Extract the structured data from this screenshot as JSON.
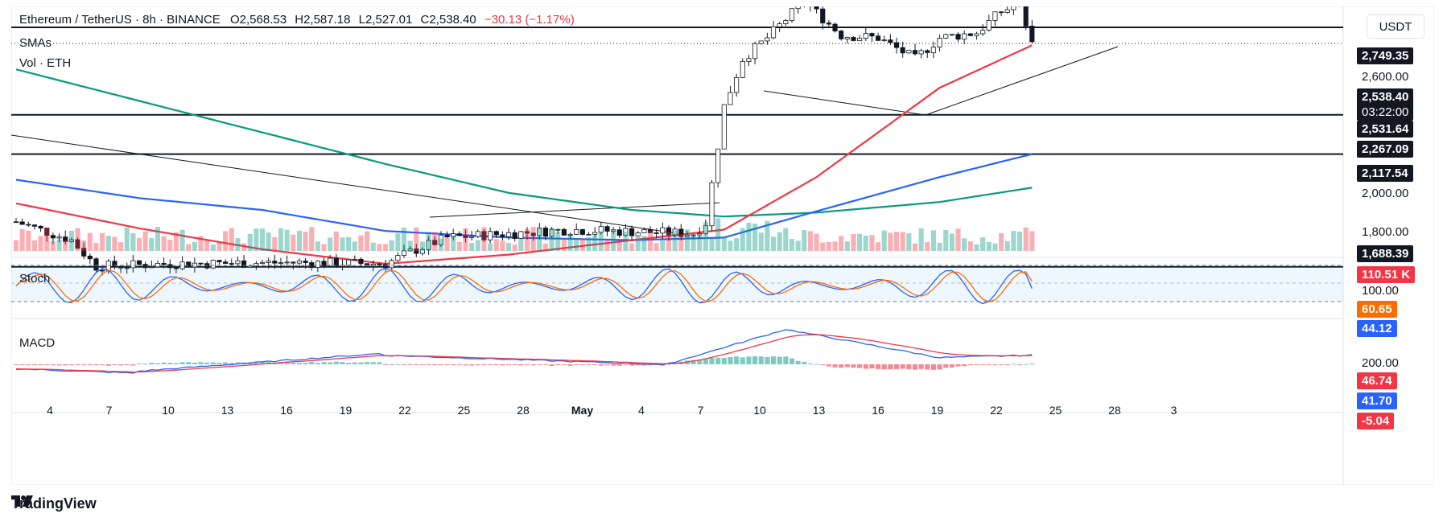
{
  "header": {
    "symbol": "Ethereum / TetherUS · 8h · BINANCE",
    "open": "O2,568.53",
    "high": "H2,587.18",
    "low": "L2,527.01",
    "close": "C2,538.40",
    "change": "−30.13 (−1.17%)",
    "change_color": "#f23645"
  },
  "currency": "USDT",
  "pane_labels": {
    "smas": "SMAs",
    "vol": "Vol · ETH",
    "stoch": "Stoch",
    "macd": "MACD"
  },
  "brand": "TradingView",
  "price_tags": {
    "h_2749": "2,749.35",
    "h_2600": "2,600.00",
    "last": "2,538.40",
    "countdown": "03:22:00",
    "sma_red": "2,531.64",
    "h_2267": "2,267.09",
    "h_2117": "2,117.54",
    "p_2000": "2,000.00",
    "p_1800": "1,800.00",
    "h_1688": "1,688.39",
    "volume": "110.51 K",
    "stoch_100": "100.00",
    "stoch_k": "60.65",
    "stoch_d": "44.12",
    "macd_200": "200.00",
    "macd_hist": "46.74",
    "macd_line": "41.70",
    "macd_signal": "-5.04"
  },
  "colors": {
    "up": "#089981",
    "down": "#f23645",
    "sma_red": "#f23645",
    "sma_blue": "#2962ff",
    "sma_green": "#089981",
    "stoch_k": "#2962ff",
    "stoch_d": "#ff6d00",
    "macd_hist_up": "#26a69a",
    "macd_hist_down": "#f23645"
  },
  "chart_data": {
    "type": "candlestick",
    "pair": "ETH/USDT",
    "timeframe": "8h",
    "x_ticks": [
      "4",
      "7",
      "10",
      "13",
      "16",
      "19",
      "22",
      "25",
      "28",
      "May",
      "4",
      "7",
      "10",
      "13",
      "16",
      "19",
      "22",
      "25",
      "28",
      "3"
    ],
    "y_ticks": [
      "2,600.00",
      "2,000.00",
      "1,800.00"
    ],
    "horizontal_levels": [
      2749.35,
      2267.09,
      2117.54,
      1688.39
    ],
    "last_price": 2538.4,
    "ohlc_path_anchors": [
      {
        "x": 0,
        "close": 1860
      },
      {
        "x": 9,
        "close": 1790
      },
      {
        "x": 13,
        "close": 1690
      },
      {
        "x": 25,
        "close": 1700
      },
      {
        "x": 45,
        "close": 1705
      },
      {
        "x": 60,
        "close": 1700
      },
      {
        "x": 64,
        "close": 1745
      },
      {
        "x": 70,
        "close": 1800
      },
      {
        "x": 90,
        "close": 1830
      },
      {
        "x": 110,
        "close": 1815
      },
      {
        "x": 112,
        "close": 1855
      },
      {
        "x": 115,
        "close": 2300
      },
      {
        "x": 118,
        "close": 2480
      },
      {
        "x": 122,
        "close": 2560
      },
      {
        "x": 128,
        "close": 2700
      },
      {
        "x": 134,
        "close": 2570
      },
      {
        "x": 140,
        "close": 2560
      },
      {
        "x": 146,
        "close": 2480
      },
      {
        "x": 150,
        "close": 2560
      },
      {
        "x": 156,
        "close": 2580
      },
      {
        "x": 160,
        "close": 2660
      },
      {
        "x": 163,
        "close": 2690
      },
      {
        "x": 165,
        "close": 2538
      }
    ],
    "sma_red": [
      [
        0,
        1930
      ],
      [
        20,
        1835
      ],
      [
        40,
        1755
      ],
      [
        60,
        1700
      ],
      [
        80,
        1735
      ],
      [
        100,
        1790
      ],
      [
        115,
        1830
      ],
      [
        130,
        2030
      ],
      [
        150,
        2370
      ],
      [
        165,
        2531.64
      ]
    ],
    "sma_blue": [
      [
        0,
        2020
      ],
      [
        20,
        1950
      ],
      [
        40,
        1905
      ],
      [
        60,
        1825
      ],
      [
        80,
        1800
      ],
      [
        100,
        1790
      ],
      [
        115,
        1800
      ],
      [
        130,
        1900
      ],
      [
        150,
        2030
      ],
      [
        165,
        2117.54
      ]
    ],
    "sma_green": [
      [
        0,
        2440
      ],
      [
        20,
        2320
      ],
      [
        40,
        2200
      ],
      [
        60,
        2080
      ],
      [
        80,
        1970
      ],
      [
        100,
        1905
      ],
      [
        115,
        1880
      ],
      [
        130,
        1895
      ],
      [
        150,
        1935
      ],
      [
        165,
        1990
      ]
    ],
    "volume_units": "K ETH",
    "volume_last": 110.51,
    "stoch": {
      "k_last": 60.65,
      "d_last": 44.12,
      "upper": 80,
      "lower": 20
    },
    "macd": {
      "hist_last": 46.74,
      "macd_last": 41.7,
      "signal_last": -5.04
    }
  }
}
